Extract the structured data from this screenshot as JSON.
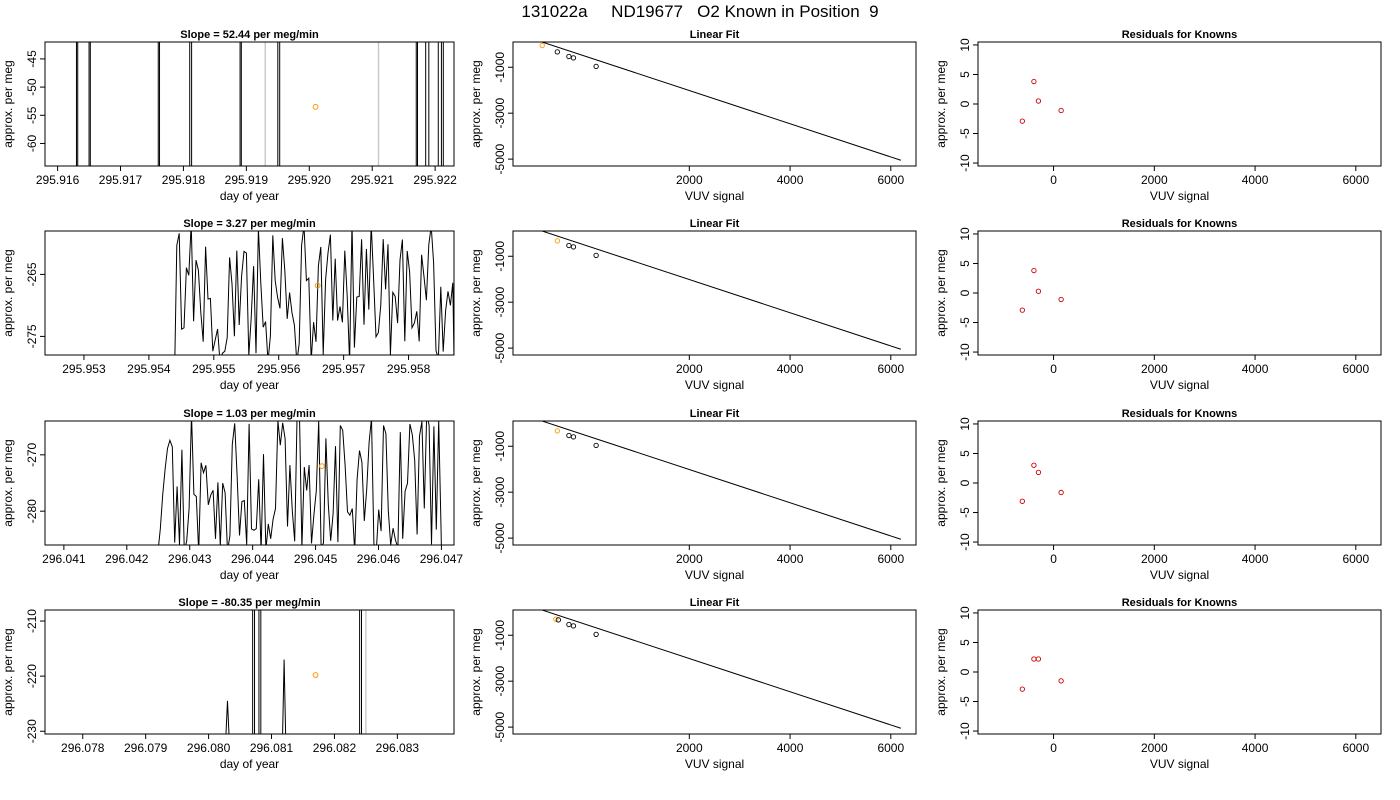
{
  "page_title": "131022a     ND19677   O2 Known in Position  9",
  "colors": {
    "line": "#000000",
    "grey_line": "#c8c8c8",
    "orange": "#ff9900",
    "red": "#cc0000"
  },
  "chart_data": [
    {
      "type": "line",
      "row": 0,
      "col": 0,
      "title": "Slope =  52.44  per meg/min",
      "xlabel": "day of year",
      "ylabel": "approx. per meg",
      "xlim": [
        295.9158,
        295.9223
      ],
      "ylim": [
        -64,
        -42
      ],
      "xticks": [
        "295.916",
        "295.917",
        "295.918",
        "295.919",
        "295.920",
        "295.921",
        "295.922"
      ],
      "yticks": [
        "-45",
        "-50",
        "-55",
        "-60"
      ],
      "vlines_dark": [
        295.9163,
        295.91632,
        295.9165,
        295.91652,
        295.9176,
        295.91762,
        295.9181,
        295.91813,
        295.9189,
        295.91892,
        295.9195,
        295.91953,
        295.9217,
        295.92172,
        295.92185,
        295.9219,
        295.92205,
        295.9221,
        295.92213
      ],
      "vlines_grey": [
        295.9193,
        295.9211
      ],
      "highlight": [
        295.9201,
        -53.5
      ]
    },
    {
      "type": "line",
      "row": 0,
      "col": 1,
      "title": "Linear Fit",
      "xlabel": "VUV signal",
      "ylabel": "approx. per meg",
      "xlim": [
        -1500,
        6500
      ],
      "ylim": [
        -5300,
        100
      ],
      "xticks": [
        "2000",
        "4000",
        "6000"
      ],
      "yticks": [
        "-1000",
        "-3000",
        "-5000"
      ],
      "fit_line": [
        [
          -1200,
          300
        ],
        [
          6200,
          -5050
        ]
      ],
      "points": [
        [
          -920,
          -55
        ],
        [
          -620,
          -330
        ],
        [
          -390,
          -530
        ],
        [
          -300,
          -590
        ],
        [
          150,
          -960
        ]
      ],
      "highlight_index": 0
    },
    {
      "type": "scatter",
      "row": 0,
      "col": 2,
      "title": "Residuals for Knowns",
      "xlabel": "VUV signal",
      "ylabel": "approx. per meg",
      "xlim": [
        -1500,
        6500
      ],
      "ylim": [
        -10.5,
        10.5
      ],
      "xticks": [
        "0",
        "2000",
        "4000",
        "6000"
      ],
      "yticks": [
        "10",
        "5",
        "0",
        "-5",
        "-10"
      ],
      "points": [
        [
          -620,
          -2.9
        ],
        [
          -390,
          3.8
        ],
        [
          -300,
          0.5
        ],
        [
          150,
          -1.1
        ]
      ]
    },
    {
      "type": "line",
      "row": 1,
      "col": 0,
      "title": "Slope =  3.27  per meg/min",
      "xlabel": "day of year",
      "ylabel": "approx. per meg",
      "xlim": [
        295.9524,
        295.9587
      ],
      "ylim": [
        -278,
        -258
      ],
      "xticks": [
        "295.953",
        "295.954",
        "295.955",
        "295.956",
        "295.957",
        "295.958"
      ],
      "yticks": [
        "-265",
        "-275"
      ],
      "wiggle": [
        295.9544,
        295.9587
      ],
      "highlight": [
        295.9566,
        -266.8
      ]
    },
    {
      "type": "line",
      "row": 1,
      "col": 1,
      "title": "Linear Fit",
      "xlabel": "VUV signal",
      "ylabel": "approx. per meg",
      "xlim": [
        -1500,
        6500
      ],
      "ylim": [
        -5300,
        100
      ],
      "xticks": [
        "2000",
        "4000",
        "6000"
      ],
      "yticks": [
        "-1000",
        "-3000",
        "-5000"
      ],
      "fit_line": [
        [
          -1200,
          300
        ],
        [
          6200,
          -5050
        ]
      ],
      "points": [
        [
          -620,
          -330
        ],
        [
          -390,
          -530
        ],
        [
          -300,
          -590
        ],
        [
          150,
          -960
        ]
      ],
      "highlight_index": 0
    },
    {
      "type": "scatter",
      "row": 1,
      "col": 2,
      "title": "Residuals for Knowns",
      "xlabel": "VUV signal",
      "ylabel": "approx. per meg",
      "xlim": [
        -1500,
        6500
      ],
      "ylim": [
        -10.5,
        10.5
      ],
      "xticks": [
        "0",
        "2000",
        "4000",
        "6000"
      ],
      "yticks": [
        "10",
        "5",
        "0",
        "-5",
        "-10"
      ],
      "points": [
        [
          -620,
          -2.9
        ],
        [
          -390,
          3.8
        ],
        [
          -300,
          0.3
        ],
        [
          150,
          -1.1
        ]
      ]
    },
    {
      "type": "line",
      "row": 2,
      "col": 0,
      "title": "Slope =  1.03  per meg/min",
      "xlabel": "day of year",
      "ylabel": "approx. per meg",
      "xlim": [
        296.0407,
        296.0472
      ],
      "ylim": [
        -286,
        -264
      ],
      "xticks": [
        "296.041",
        "296.042",
        "296.043",
        "296.044",
        "296.045",
        "296.046",
        "296.047"
      ],
      "yticks": [
        "-270",
        "-280"
      ],
      "wiggle": [
        296.0425,
        296.047
      ],
      "highlight": [
        296.0451,
        -272.0
      ]
    },
    {
      "type": "line",
      "row": 2,
      "col": 1,
      "title": "Linear Fit",
      "xlabel": "VUV signal",
      "ylabel": "approx. per meg",
      "xlim": [
        -1500,
        6500
      ],
      "ylim": [
        -5300,
        100
      ],
      "xticks": [
        "2000",
        "4000",
        "6000"
      ],
      "yticks": [
        "-1000",
        "-3000",
        "-5000"
      ],
      "fit_line": [
        [
          -1200,
          300
        ],
        [
          6200,
          -5050
        ]
      ],
      "points": [
        [
          -620,
          -330
        ],
        [
          -390,
          -530
        ],
        [
          -300,
          -590
        ],
        [
          150,
          -960
        ]
      ],
      "highlight_index": 0
    },
    {
      "type": "scatter",
      "row": 2,
      "col": 2,
      "title": "Residuals for Knowns",
      "xlabel": "VUV signal",
      "ylabel": "approx. per meg",
      "xlim": [
        -1500,
        6500
      ],
      "ylim": [
        -10.5,
        10.5
      ],
      "xticks": [
        "0",
        "2000",
        "4000",
        "6000"
      ],
      "yticks": [
        "10",
        "5",
        "0",
        "-5",
        "-10"
      ],
      "points": [
        [
          -620,
          -3.1
        ],
        [
          -390,
          3.0
        ],
        [
          -300,
          1.8
        ],
        [
          150,
          -1.6
        ]
      ]
    },
    {
      "type": "line",
      "row": 3,
      "col": 0,
      "title": "Slope =  -80.35  per meg/min",
      "xlabel": "day of year",
      "ylabel": "approx. per meg",
      "xlim": [
        296.0774,
        296.0839
      ],
      "ylim": [
        -230.5,
        -208
      ],
      "xticks": [
        "296.078",
        "296.079",
        "296.080",
        "296.081",
        "296.082",
        "296.083"
      ],
      "yticks": [
        "-210",
        "-220",
        "-230"
      ],
      "vlines_dark": [
        296.0807,
        296.08073,
        296.0808,
        296.08083,
        296.0824,
        296.08243
      ],
      "vlines_grey": [
        296.0825
      ],
      "spikes": [
        [
          296.0803,
          -224.5
        ],
        [
          296.0812,
          -217.0
        ]
      ],
      "highlight": [
        296.0817,
        -219.8
      ]
    },
    {
      "type": "line",
      "row": 3,
      "col": 1,
      "title": "Linear Fit",
      "xlabel": "VUV signal",
      "ylabel": "approx. per meg",
      "xlim": [
        -1500,
        6500
      ],
      "ylim": [
        -5300,
        100
      ],
      "xticks": [
        "2000",
        "4000",
        "6000"
      ],
      "yticks": [
        "-1000",
        "-3000",
        "-5000"
      ],
      "fit_line": [
        [
          -1200,
          300
        ],
        [
          6200,
          -5050
        ]
      ],
      "points": [
        [
          -650,
          -300
        ],
        [
          -600,
          -330
        ],
        [
          -390,
          -530
        ],
        [
          -300,
          -590
        ],
        [
          150,
          -960
        ]
      ],
      "highlight_index": 0
    },
    {
      "type": "scatter",
      "row": 3,
      "col": 2,
      "title": "Residuals for Knowns",
      "xlabel": "VUV signal",
      "ylabel": "approx. per meg",
      "xlim": [
        -1500,
        6500
      ],
      "ylim": [
        -10.5,
        10.5
      ],
      "xticks": [
        "0",
        "2000",
        "4000",
        "6000"
      ],
      "yticks": [
        "10",
        "5",
        "0",
        "-5",
        "-10"
      ],
      "points": [
        [
          -620,
          -2.9
        ],
        [
          -390,
          2.2
        ],
        [
          -300,
          2.2
        ],
        [
          150,
          -1.5
        ]
      ]
    }
  ]
}
